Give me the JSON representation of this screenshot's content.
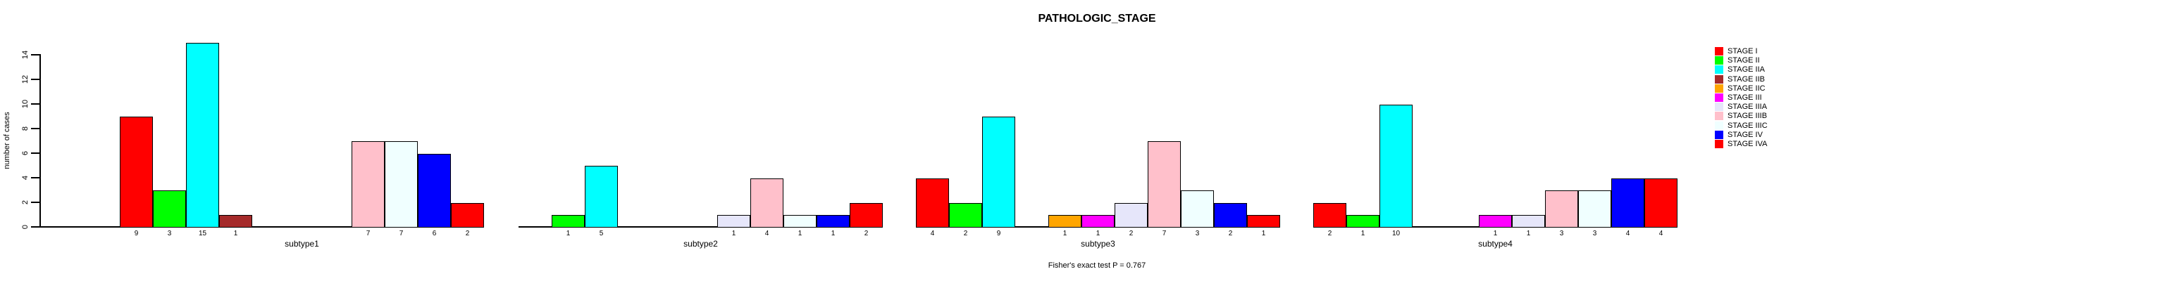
{
  "figure": {
    "title": "PATHOLOGIC_STAGE",
    "footer": "Fisher's exact test P = 0.767",
    "ylabel": "number of cases"
  },
  "chart_data": {
    "type": "bar",
    "title": "PATHOLOGIC_STAGE",
    "xlabel": "",
    "ylabel": "number of cases",
    "annotation": "Fisher's exact test P = 0.767",
    "ylim": [
      0,
      15
    ],
    "yticks": [
      0,
      2,
      4,
      6,
      8,
      10,
      12,
      14
    ],
    "grid": false,
    "legend_position": "right",
    "bar_border_color": "#000000",
    "categories": [
      "subtype1",
      "subtype2",
      "subtype3",
      "subtype4"
    ],
    "series": [
      {
        "name": "STAGE I",
        "color": "#FF0000",
        "values": [
          9,
          0,
          4,
          2
        ]
      },
      {
        "name": "STAGE II",
        "color": "#00FF00",
        "values": [
          3,
          1,
          2,
          1
        ]
      },
      {
        "name": "STAGE IIA",
        "color": "#00FFFF",
        "values": [
          15,
          5,
          9,
          10
        ]
      },
      {
        "name": "STAGE IIB",
        "color": "#A52A2A",
        "values": [
          1,
          0,
          0,
          0
        ]
      },
      {
        "name": "STAGE IIC",
        "color": "#FFA500",
        "values": [
          0,
          0,
          1,
          0
        ]
      },
      {
        "name": "STAGE III",
        "color": "#FF00FF",
        "values": [
          0,
          0,
          1,
          1
        ]
      },
      {
        "name": "STAGE IIIA",
        "color": "#E6E6FA",
        "values": [
          0,
          1,
          2,
          1
        ]
      },
      {
        "name": "STAGE IIIB",
        "color": "#FFC0CB",
        "values": [
          7,
          4,
          7,
          3
        ]
      },
      {
        "name": "STAGE IIIC",
        "color": "#F0FFFF",
        "values": [
          7,
          1,
          3,
          3
        ]
      },
      {
        "name": "STAGE IV",
        "color": "#0000FF",
        "values": [
          6,
          1,
          2,
          4
        ]
      },
      {
        "name": "STAGE IVA",
        "color": "#FF0000",
        "values": [
          2,
          2,
          1,
          4
        ]
      }
    ]
  }
}
